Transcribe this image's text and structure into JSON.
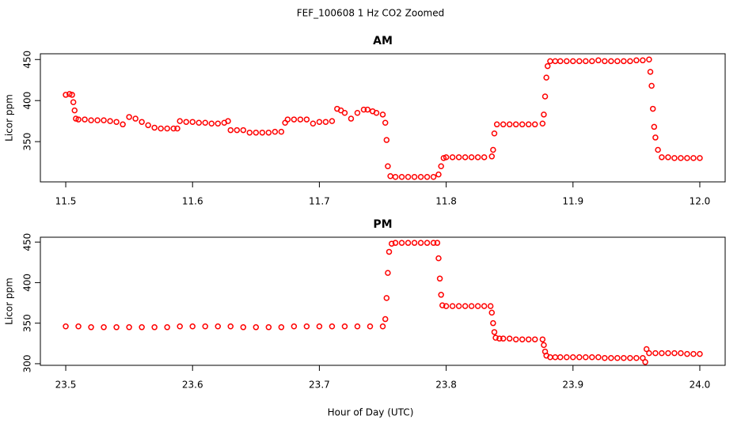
{
  "title": "FEF_100608  1 Hz CO2 Zoomed",
  "x_label": "Hour of Day (UTC)",
  "chart_data": [
    {
      "type": "scatter",
      "title": "AM",
      "y_label": "Licor ppm",
      "color": "#ff0000",
      "x": [
        11.5,
        11.503,
        11.505,
        11.506,
        11.507,
        11.508,
        11.51,
        11.515,
        11.52,
        11.525,
        11.53,
        11.535,
        11.54,
        11.545,
        11.55,
        11.555,
        11.56,
        11.565,
        11.57,
        11.575,
        11.58,
        11.585,
        11.588,
        11.59,
        11.595,
        11.6,
        11.605,
        11.61,
        11.615,
        11.62,
        11.625,
        11.628,
        11.63,
        11.635,
        11.64,
        11.645,
        11.65,
        11.655,
        11.66,
        11.665,
        11.67,
        11.673,
        11.675,
        11.68,
        11.685,
        11.69,
        11.695,
        11.7,
        11.705,
        11.71,
        11.714,
        11.717,
        11.72,
        11.725,
        11.73,
        11.735,
        11.738,
        11.742,
        11.745,
        11.75,
        11.752,
        11.753,
        11.754,
        11.756,
        11.76,
        11.765,
        11.77,
        11.775,
        11.78,
        11.785,
        11.79,
        11.794,
        11.796,
        11.798,
        11.8,
        11.805,
        11.81,
        11.815,
        11.82,
        11.825,
        11.83,
        11.836,
        11.837,
        11.838,
        11.84,
        11.845,
        11.85,
        11.855,
        11.86,
        11.865,
        11.87,
        11.876,
        11.877,
        11.878,
        11.879,
        11.88,
        11.882,
        11.886,
        11.89,
        11.895,
        11.9,
        11.905,
        11.91,
        11.915,
        11.92,
        11.925,
        11.93,
        11.935,
        11.94,
        11.945,
        11.95,
        11.955,
        11.96,
        11.961,
        11.962,
        11.963,
        11.964,
        11.965,
        11.967,
        11.97,
        11.975,
        11.98,
        11.985,
        11.99,
        11.995,
        12.0
      ],
      "values": [
        407,
        408,
        407,
        398,
        388,
        378,
        377,
        377,
        376,
        376,
        376,
        375,
        374,
        371,
        380,
        378,
        374,
        370,
        367,
        366,
        366,
        366,
        366,
        375,
        374,
        374,
        373,
        373,
        372,
        372,
        373,
        375,
        364,
        364,
        364,
        361,
        361,
        361,
        361,
        362,
        362,
        373,
        377,
        377,
        377,
        377,
        372,
        374,
        374,
        375,
        390,
        388,
        385,
        378,
        385,
        389,
        389,
        387,
        385,
        383,
        373,
        352,
        320,
        308,
        307,
        307,
        307,
        307,
        307,
        307,
        307,
        310,
        320,
        330,
        331,
        331,
        331,
        331,
        331,
        331,
        331,
        332,
        340,
        360,
        371,
        371,
        371,
        371,
        371,
        371,
        371,
        372,
        383,
        405,
        428,
        442,
        448,
        448,
        448,
        448,
        448,
        448,
        448,
        448,
        449,
        448,
        448,
        448,
        448,
        448,
        449,
        449,
        450,
        435,
        418,
        390,
        368,
        355,
        340,
        331,
        331,
        330,
        330,
        330,
        330,
        330
      ],
      "xlim": [
        11.48,
        12.02
      ],
      "ylim": [
        301,
        457
      ],
      "xticks": [
        11.5,
        11.6,
        11.7,
        11.8,
        11.9,
        {
          "value": 12,
          "label": "12.0"
        }
      ],
      "yticks": [
        350,
        400,
        450
      ]
    },
    {
      "type": "scatter",
      "title": "PM",
      "y_label": "Licor ppm",
      "color": "#ff0000",
      "x": [
        23.5,
        23.51,
        23.52,
        23.53,
        23.54,
        23.55,
        23.56,
        23.57,
        23.58,
        23.59,
        23.6,
        23.61,
        23.62,
        23.63,
        23.64,
        23.65,
        23.66,
        23.67,
        23.68,
        23.69,
        23.7,
        23.71,
        23.72,
        23.73,
        23.74,
        23.75,
        23.752,
        23.753,
        23.754,
        23.755,
        23.757,
        23.76,
        23.765,
        23.77,
        23.775,
        23.78,
        23.785,
        23.79,
        23.793,
        23.794,
        23.795,
        23.796,
        23.797,
        23.8,
        23.805,
        23.81,
        23.815,
        23.82,
        23.825,
        23.83,
        23.835,
        23.836,
        23.837,
        23.838,
        23.839,
        23.842,
        23.845,
        23.85,
        23.855,
        23.86,
        23.865,
        23.87,
        23.876,
        23.877,
        23.878,
        23.879,
        23.882,
        23.886,
        23.89,
        23.895,
        23.9,
        23.905,
        23.91,
        23.915,
        23.92,
        23.925,
        23.93,
        23.935,
        23.94,
        23.945,
        23.95,
        23.955,
        23.957,
        23.958,
        23.96,
        23.965,
        23.97,
        23.975,
        23.98,
        23.985,
        23.99,
        23.995,
        24.0
      ],
      "values": [
        346,
        346,
        345,
        345,
        345,
        345,
        345,
        345,
        345,
        346,
        346,
        346,
        346,
        346,
        345,
        345,
        345,
        345,
        346,
        346,
        346,
        346,
        346,
        346,
        346,
        346,
        355,
        381,
        412,
        438,
        448,
        449,
        449,
        449,
        449,
        449,
        449,
        449,
        449,
        430,
        405,
        385,
        372,
        371,
        371,
        371,
        371,
        371,
        371,
        371,
        371,
        363,
        350,
        339,
        332,
        331,
        331,
        331,
        330,
        330,
        330,
        330,
        330,
        323,
        315,
        310,
        308,
        308,
        308,
        308,
        308,
        308,
        308,
        308,
        308,
        307,
        307,
        307,
        307,
        307,
        307,
        307,
        302,
        318,
        313,
        313,
        313,
        313,
        313,
        313,
        312,
        312,
        312
      ],
      "xlim": [
        23.48,
        24.02
      ],
      "ylim": [
        298,
        456
      ],
      "xticks": [
        23.5,
        23.6,
        23.7,
        23.8,
        23.9,
        {
          "value": 24,
          "label": "24.0"
        }
      ],
      "yticks": [
        300,
        350,
        400,
        450
      ]
    }
  ]
}
